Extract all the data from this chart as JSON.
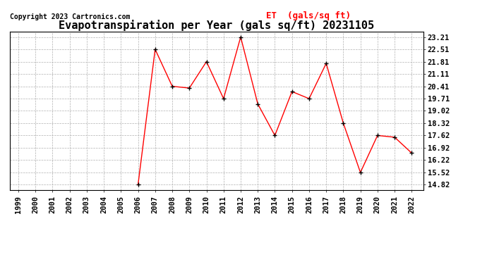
{
  "title": "Evapotranspiration per Year (gals sq/ft) 20231105",
  "copyright": "Copyright 2023 Cartronics.com",
  "legend_label": "ET  (gals/sq ft)",
  "years": [
    1999,
    2000,
    2001,
    2002,
    2003,
    2004,
    2005,
    2006,
    2007,
    2008,
    2009,
    2010,
    2011,
    2012,
    2013,
    2014,
    2015,
    2016,
    2017,
    2018,
    2019,
    2020,
    2021,
    2022
  ],
  "values": [
    null,
    null,
    null,
    null,
    null,
    null,
    null,
    14.82,
    22.51,
    20.41,
    20.31,
    21.81,
    19.71,
    23.21,
    19.41,
    17.62,
    20.11,
    19.71,
    21.71,
    18.32,
    15.52,
    17.62,
    17.52,
    16.62
  ],
  "yticks": [
    14.82,
    15.52,
    16.22,
    16.92,
    17.62,
    18.32,
    19.02,
    19.71,
    20.41,
    21.11,
    21.81,
    22.51,
    23.21
  ],
  "ylim": [
    14.52,
    23.51
  ],
  "xlim": [
    1998.5,
    2022.7
  ],
  "line_color": "red",
  "marker_color": "black",
  "background_color": "white",
  "grid_color": "#b0b0b0",
  "title_fontsize": 11,
  "copyright_fontsize": 7,
  "legend_fontsize": 9,
  "tick_fontsize": 7.5
}
